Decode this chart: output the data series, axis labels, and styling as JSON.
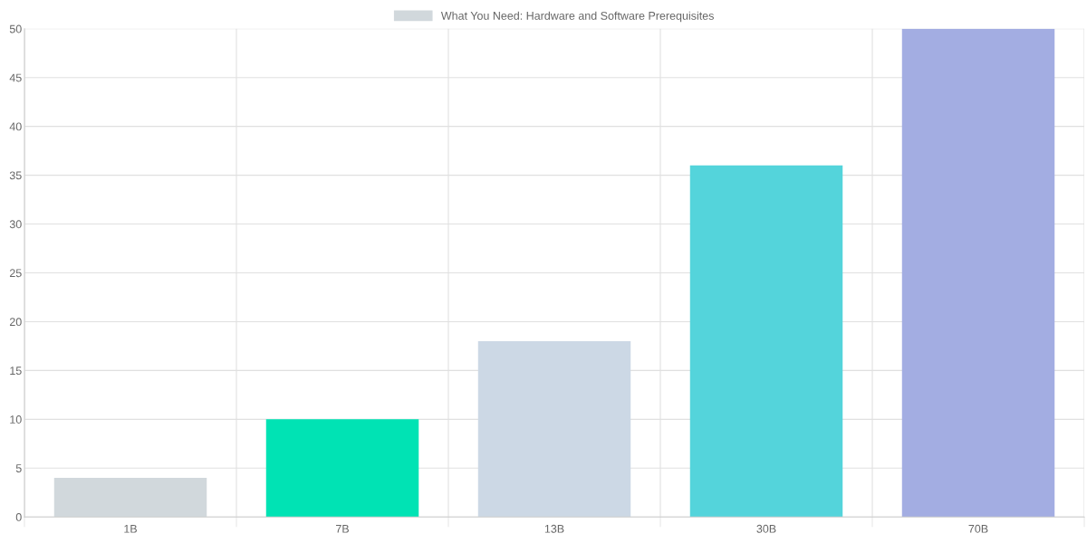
{
  "chart_data": {
    "type": "bar",
    "categories": [
      "1B",
      "7B",
      "13B",
      "30B",
      "70B"
    ],
    "series": [
      {
        "name": "What You Need: Hardware and Software Prerequisites",
        "colors": [
          "#d1d8dc",
          "#00e3b4",
          "#ccd8e5",
          "#54d4db",
          "#a3ade2"
        ],
        "values": [
          4,
          10,
          18,
          36,
          50
        ]
      }
    ],
    "ylim": [
      0,
      50
    ],
    "yticks": [
      0,
      5,
      10,
      15,
      20,
      25,
      30,
      35,
      40,
      45,
      50
    ],
    "grid": true,
    "legend": "top"
  }
}
